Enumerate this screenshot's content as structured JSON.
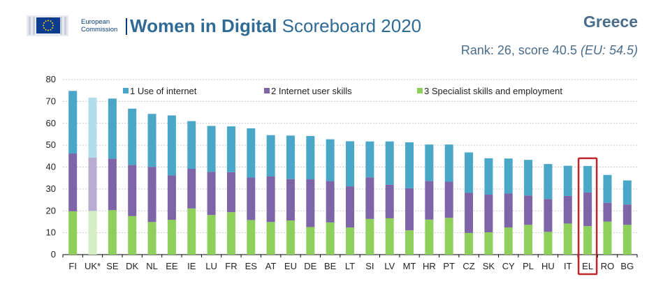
{
  "header": {
    "logo_line1": "European",
    "logo_line2": "Commission",
    "title_bold": "Women in Digital",
    "title_rest": " Scoreboard 2020",
    "country": "Greece",
    "rank_text": "Rank: 26, score 40.5 ",
    "eu_text": "(EU: 54.5)"
  },
  "colors": {
    "internet": "#4ba7c8",
    "skills": "#7d65a8",
    "specialist": "#8fcf5c",
    "internet_faded": "#b3dcec",
    "skills_faded": "#b8acd3",
    "specialist_faded": "#d6ecc4",
    "highlight": "#c0262c"
  },
  "chart_data": {
    "type": "bar",
    "stacked": true,
    "categories": [
      "FI",
      "UK*",
      "SE",
      "DK",
      "NL",
      "EE",
      "IE",
      "LU",
      "FR",
      "ES",
      "AT",
      "EU",
      "DE",
      "BE",
      "LT",
      "SI",
      "LV",
      "MT",
      "HR",
      "PT",
      "CZ",
      "SK",
      "CY",
      "PL",
      "HU",
      "IT",
      "EL",
      "RO",
      "BG"
    ],
    "series": [
      {
        "name": "3 Specialist skills and employment",
        "values": [
          19.8,
          20.0,
          20.3,
          17.6,
          14.9,
          15.9,
          21.1,
          18.1,
          19.4,
          15.8,
          14.9,
          15.6,
          12.6,
          14.7,
          12.4,
          16.3,
          16.6,
          11.1,
          16.0,
          16.8,
          9.9,
          10.2,
          12.4,
          13.6,
          10.4,
          14.2,
          13.0,
          15.1,
          13.6
        ]
      },
      {
        "name": "2 Internet user skills",
        "values": [
          26.4,
          24.3,
          23.6,
          23.4,
          25.2,
          20.3,
          18.1,
          19.7,
          18.3,
          19.4,
          20.8,
          18.9,
          21.8,
          18.9,
          18.8,
          19.0,
          15.3,
          19.2,
          17.6,
          16.5,
          18.3,
          17.2,
          15.5,
          13.4,
          15.0,
          12.6,
          15.4,
          8.6,
          9.3
        ]
      },
      {
        "name": "1 Use of internet",
        "values": [
          28.6,
          27.4,
          27.4,
          25.7,
          24.2,
          27.4,
          21.8,
          21.0,
          20.9,
          22.5,
          18.9,
          19.9,
          19.8,
          19.1,
          20.6,
          16.4,
          19.8,
          21.0,
          16.7,
          17.0,
          18.5,
          16.6,
          16.0,
          16.3,
          16.0,
          13.8,
          12.1,
          12.7,
          11.0
        ]
      }
    ],
    "faded_categories": [
      "UK*"
    ],
    "highlighted_category": "EL",
    "ylim": [
      0,
      80
    ],
    "yticks": [
      0,
      10,
      20,
      30,
      40,
      50,
      60,
      70,
      80
    ],
    "grid": true,
    "legend": [
      {
        "label": "1 Use of internet",
        "color_key": "internet"
      },
      {
        "label": "2 Internet user skills",
        "color_key": "skills"
      },
      {
        "label": "3 Specialist skills and employment",
        "color_key": "specialist"
      }
    ]
  }
}
